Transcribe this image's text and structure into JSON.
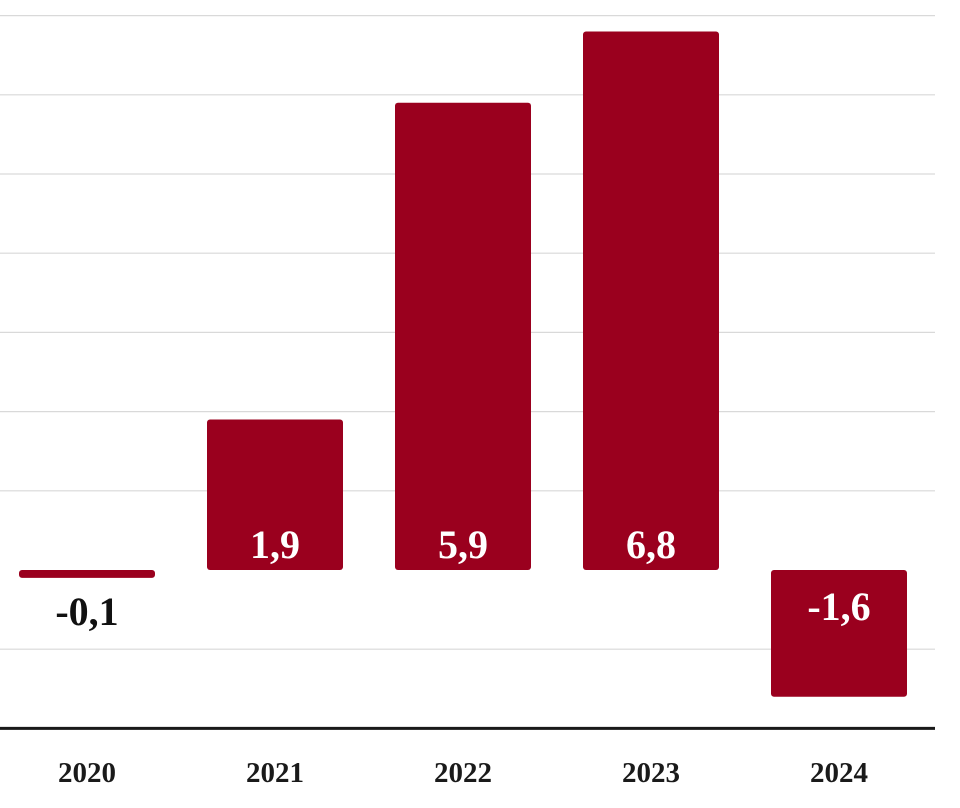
{
  "chart_data": {
    "type": "bar",
    "categories": [
      "2020",
      "2021",
      "2022",
      "2023",
      "2024"
    ],
    "values": [
      -0.1,
      1.9,
      5.9,
      6.8,
      -1.6
    ],
    "data_labels": [
      "-0,1",
      "1,9",
      "5,9",
      "6,8",
      "-1,6"
    ],
    "title": "",
    "xlabel": "",
    "ylabel": "",
    "ylim": [
      -2.0,
      7.0
    ],
    "grid": true,
    "legend": "none",
    "colors": {
      "bar": "#9a001e",
      "label_inside": "#ffffff",
      "label_outside": "#111111"
    }
  }
}
